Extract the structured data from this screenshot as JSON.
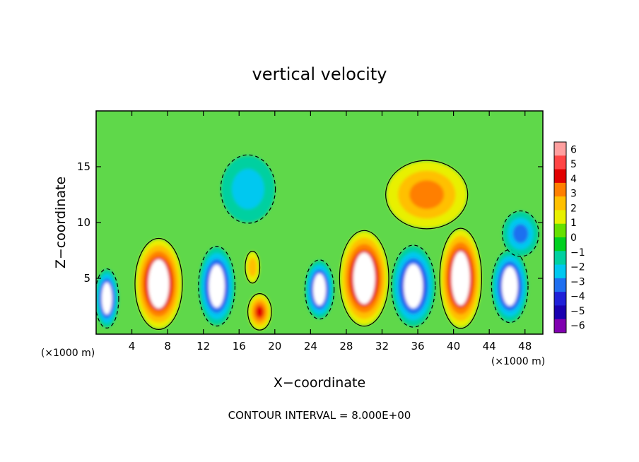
{
  "chart_data": {
    "type": "heatmap",
    "title": "vertical velocity",
    "xlabel": "X−coordinate",
    "ylabel": "Z−coordinate",
    "x_unit_left": "(×1000 m)",
    "x_unit_right": "(×1000 m)",
    "xlim": [
      0,
      50
    ],
    "ylim": [
      0,
      20
    ],
    "xticks": [
      "4",
      "8",
      "12",
      "16",
      "20",
      "24",
      "28",
      "32",
      "36",
      "40",
      "44",
      "48"
    ],
    "xtick_values": [
      4,
      8,
      12,
      16,
      20,
      24,
      28,
      32,
      36,
      40,
      44,
      48
    ],
    "yticks": [
      "5",
      "10",
      "15"
    ],
    "ytick_values": [
      5,
      10,
      15
    ],
    "footer": "CONTOUR INTERVAL = 8.000E+00",
    "colorbar": {
      "labels": [
        "6",
        "5",
        "4",
        "3",
        "2",
        "1",
        "0",
        "−1",
        "−2",
        "−3",
        "−4",
        "−5",
        "−6"
      ],
      "colors": [
        "#ff9f9f",
        "#ff4545",
        "#e10000",
        "#ff7f00",
        "#ffc000",
        "#e8f000",
        "#66e000",
        "#00d020",
        "#00d0a0",
        "#00c8f0",
        "#1f6ff0",
        "#2020d8",
        "#1a00b0",
        "#8000b0"
      ]
    },
    "cells": [
      {
        "x": 1.2,
        "z": 3.2,
        "w": -8,
        "rx": 1.3,
        "rz": 2.6
      },
      {
        "x": 7.0,
        "z": 4.5,
        "w": 12,
        "rx": 2.6,
        "rz": 4.0
      },
      {
        "x": 13.5,
        "z": 4.3,
        "w": -9,
        "rx": 2.0,
        "rz": 3.5
      },
      {
        "x": 18.3,
        "z": 2.0,
        "w": 5,
        "rx": 1.3,
        "rz": 1.6
      },
      {
        "x": 17.5,
        "z": 6.0,
        "w": 2,
        "rx": 0.8,
        "rz": 1.4
      },
      {
        "x": 25.0,
        "z": 4.0,
        "w": -7,
        "rx": 1.6,
        "rz": 2.6
      },
      {
        "x": 30.0,
        "z": 5.0,
        "w": 12,
        "rx": 2.7,
        "rz": 4.2
      },
      {
        "x": 35.5,
        "z": 4.3,
        "w": -9,
        "rx": 2.4,
        "rz": 3.6
      },
      {
        "x": 40.8,
        "z": 5.0,
        "w": 11,
        "rx": 2.3,
        "rz": 4.4
      },
      {
        "x": 46.3,
        "z": 4.3,
        "w": -8,
        "rx": 2.0,
        "rz": 3.2
      },
      {
        "x": 37.0,
        "z": 12.5,
        "w": 4,
        "rx": 4.5,
        "rz": 3.0
      },
      {
        "x": 17.0,
        "z": 13.0,
        "w": -2,
        "rx": 3.0,
        "rz": 3.0
      },
      {
        "x": 47.5,
        "z": 9.0,
        "w": -3,
        "rx": 2.0,
        "rz": 2.0
      }
    ]
  }
}
